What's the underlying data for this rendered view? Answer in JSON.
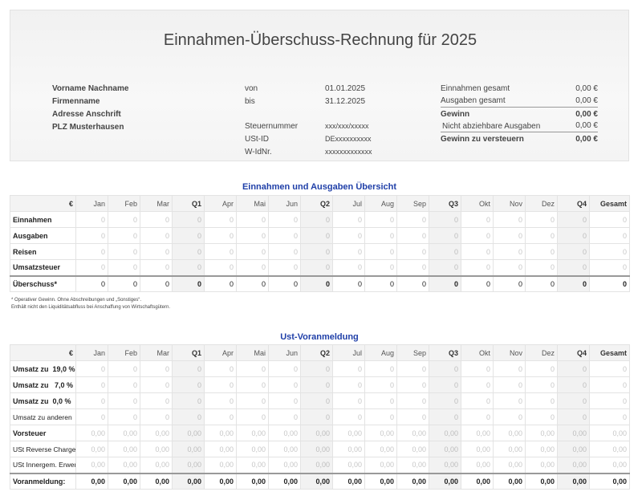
{
  "title": "Einnahmen-Überschuss-Rechnung für 2025",
  "address": {
    "name": "Vorname Nachname",
    "company": "Firmenname",
    "street": "Adresse Anschrift",
    "city": "PLZ Musterhausen"
  },
  "period": {
    "from_label": "von",
    "from_value": "01.01.2025",
    "to_label": "bis",
    "to_value": "31.12.2025"
  },
  "tax_ids": [
    {
      "label": "Steuernummer",
      "value": "xxx/xxx/xxxxx"
    },
    {
      "label": "USt-ID",
      "value": "DExxxxxxxxxx"
    },
    {
      "label": "W-IdNr.",
      "value": "xxxxxxxxxxxxx"
    }
  ],
  "summary": [
    {
      "label": "Einnahmen gesamt",
      "value": "0,00 €"
    },
    {
      "label": "Ausgaben gesamt",
      "value": "0,00 €"
    },
    {
      "label": "Gewinn",
      "value": "0,00 €"
    },
    {
      "label": "Nicht abziehbare Ausgaben",
      "value": "0,00 €"
    },
    {
      "label": "Gewinn zu versteuern",
      "value": "0,00 €"
    }
  ],
  "columns": [
    "€",
    "Jan",
    "Feb",
    "Mar",
    "Q1",
    "Apr",
    "Mai",
    "Jun",
    "Q2",
    "Jul",
    "Aug",
    "Sep",
    "Q3",
    "Okt",
    "Nov",
    "Dez",
    "Q4",
    "Gesamt"
  ],
  "overview": {
    "title": "Einnahmen und Ausgaben Übersicht",
    "rows": [
      {
        "label": "Einnahmen",
        "values": [
          "0",
          "0",
          "0",
          "0",
          "0",
          "0",
          "0",
          "0",
          "0",
          "0",
          "0",
          "0",
          "0",
          "0",
          "0",
          "0",
          "0"
        ]
      },
      {
        "label": "Ausgaben",
        "values": [
          "0",
          "0",
          "0",
          "0",
          "0",
          "0",
          "0",
          "0",
          "0",
          "0",
          "0",
          "0",
          "0",
          "0",
          "0",
          "0",
          "0"
        ]
      },
      {
        "label": "Reisen",
        "values": [
          "0",
          "0",
          "0",
          "0",
          "0",
          "0",
          "0",
          "0",
          "0",
          "0",
          "0",
          "0",
          "0",
          "0",
          "0",
          "0",
          "0"
        ]
      },
      {
        "label": "Umsatzsteuer",
        "values": [
          "0",
          "0",
          "0",
          "0",
          "0",
          "0",
          "0",
          "0",
          "0",
          "0",
          "0",
          "0",
          "0",
          "0",
          "0",
          "0",
          "0"
        ]
      }
    ],
    "sum": {
      "label": "Überschuss*",
      "values": [
        "0",
        "0",
        "0",
        "0",
        "0",
        "0",
        "0",
        "0",
        "0",
        "0",
        "0",
        "0",
        "0",
        "0",
        "0",
        "0",
        "0"
      ]
    },
    "footnote_1": "* Operativer Gewinn. Ohne Abschreibungen und „Sonstiges“.",
    "footnote_2": "Enthält nicht den Liquiditätsabfluss bei Anschaffung von Wirtschaftsgütern."
  },
  "vat": {
    "title": "Ust-Voranmeldung",
    "rows": [
      {
        "label": "Umsatz zu  19,0 %",
        "bold": true,
        "values": [
          "0",
          "0",
          "0",
          "0",
          "0",
          "0",
          "0",
          "0",
          "0",
          "0",
          "0",
          "0",
          "0",
          "0",
          "0",
          "0",
          "0"
        ]
      },
      {
        "label": "Umsatz zu   7,0 %",
        "bold": true,
        "values": [
          "0",
          "0",
          "0",
          "0",
          "0",
          "0",
          "0",
          "0",
          "0",
          "0",
          "0",
          "0",
          "0",
          "0",
          "0",
          "0",
          "0"
        ]
      },
      {
        "label": "Umsatz zu  0,0 %",
        "bold": true,
        "values": [
          "0",
          "0",
          "0",
          "0",
          "0",
          "0",
          "0",
          "0",
          "0",
          "0",
          "0",
          "0",
          "0",
          "0",
          "0",
          "0",
          "0"
        ]
      },
      {
        "label": "Umsatz zu anderen",
        "bold": false,
        "values": [
          "0",
          "0",
          "0",
          "0",
          "0",
          "0",
          "0",
          "0",
          "0",
          "0",
          "0",
          "0",
          "0",
          "0",
          "0",
          "0",
          "0"
        ]
      },
      {
        "label": "Vorsteuer",
        "bold": true,
        "values": [
          "0,00",
          "0,00",
          "0,00",
          "0,00",
          "0,00",
          "0,00",
          "0,00",
          "0,00",
          "0,00",
          "0,00",
          "0,00",
          "0,00",
          "0,00",
          "0,00",
          "0,00",
          "0,00",
          "0,00"
        ]
      },
      {
        "label": "USt Reverse Charge",
        "bold": false,
        "values": [
          "0,00",
          "0,00",
          "0,00",
          "0,00",
          "0,00",
          "0,00",
          "0,00",
          "0,00",
          "0,00",
          "0,00",
          "0,00",
          "0,00",
          "0,00",
          "0,00",
          "0,00",
          "0,00",
          "0,00"
        ]
      },
      {
        "label": "USt Innergem. Erwerb",
        "bold": false,
        "values": [
          "0,00",
          "0,00",
          "0,00",
          "0,00",
          "0,00",
          "0,00",
          "0,00",
          "0,00",
          "0,00",
          "0,00",
          "0,00",
          "0,00",
          "0,00",
          "0,00",
          "0,00",
          "0,00",
          "0,00"
        ]
      }
    ],
    "sum": {
      "label": "Voranmeldung:",
      "values": [
        "0,00",
        "0,00",
        "0,00",
        "0,00",
        "0,00",
        "0,00",
        "0,00",
        "0,00",
        "0,00",
        "0,00",
        "0,00",
        "0,00",
        "0,00",
        "0,00",
        "0,00",
        "0,00",
        "0,00"
      ]
    }
  }
}
